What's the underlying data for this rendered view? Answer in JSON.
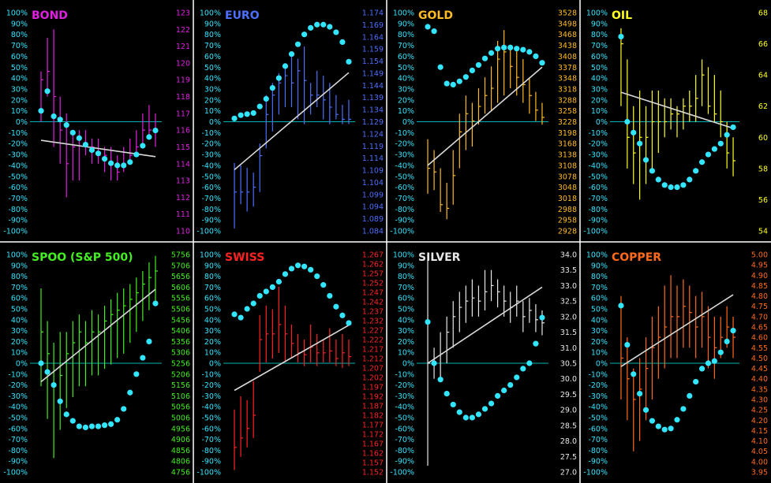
{
  "pct_ticks": [
    "100%",
    "90%",
    "80%",
    "70%",
    "60%",
    "50%",
    "40%",
    "30%",
    "20%",
    "10%",
    "0%",
    "-10%",
    "-20%",
    "-30%",
    "-40%",
    "-50%",
    "-60%",
    "-70%",
    "-80%",
    "-90%",
    "-100%"
  ],
  "colors": {
    "dots": "#33e6ff",
    "zero_line": "#00b3b3",
    "trend": "#d9d9d9",
    "divider": "#ffffff",
    "pct_label": "#33e6ff"
  },
  "chart_data": [
    {
      "type": "line",
      "title": "BOND",
      "color": "#e020e0",
      "price_ticks": [
        "123",
        "122",
        "121",
        "120",
        "119",
        "118",
        "117",
        "116",
        "115",
        "114",
        "113",
        "112",
        "111",
        "110"
      ],
      "price_range": [
        110,
        123
      ],
      "trend_pct": [
        -17,
        -32
      ],
      "oscillator_pct": [
        10,
        28,
        5,
        2,
        -3,
        -10,
        -15,
        -21,
        -26,
        -29,
        -34,
        -38,
        -40,
        -40,
        -37,
        -30,
        -22,
        -14,
        -8
      ],
      "price_bars": [
        [
          116.5,
          119.5,
          119
        ],
        [
          118,
          121.5,
          119.5
        ],
        [
          115,
          122,
          118
        ],
        [
          114,
          118,
          116
        ],
        [
          112,
          117,
          114
        ],
        [
          113,
          116,
          115
        ],
        [
          113,
          116,
          115.5
        ],
        [
          114.5,
          116,
          115
        ],
        [
          114,
          115.5,
          115
        ],
        [
          114,
          115.5,
          114.5
        ],
        [
          113.5,
          115,
          114.5
        ],
        [
          113,
          115,
          114
        ],
        [
          113,
          114.5,
          113.5
        ],
        [
          113.5,
          115,
          114
        ],
        [
          114,
          115.5,
          114.5
        ],
        [
          114.5,
          116,
          115
        ],
        [
          115,
          117,
          116
        ],
        [
          115.5,
          117.5,
          116
        ],
        [
          115,
          117,
          116
        ]
      ]
    },
    {
      "type": "line",
      "title": "EURO",
      "color": "#4d6fff",
      "price_ticks": [
        "1.174",
        "1.169",
        "1.164",
        "1.159",
        "1.154",
        "1.149",
        "1.144",
        "1.139",
        "1.134",
        "1.129",
        "1.124",
        "1.119",
        "1.114",
        "1.109",
        "1.104",
        "1.099",
        "1.094",
        "1.089",
        "1.084"
      ],
      "price_range": [
        1.084,
        1.174
      ],
      "trend_pct": [
        -44,
        45
      ],
      "oscillator_pct": [
        3,
        6,
        7,
        8,
        14,
        21,
        31,
        40,
        51,
        62,
        71,
        80,
        86,
        89,
        89,
        87,
        82,
        73,
        55
      ],
      "price_bars": [
        [
          1.085,
          1.112,
          1.1
        ],
        [
          1.095,
          1.111,
          1.1
        ],
        [
          1.092,
          1.11,
          1.1
        ],
        [
          1.094,
          1.108,
          1.102
        ],
        [
          1.1,
          1.12,
          1.115
        ],
        [
          1.118,
          1.14,
          1.132
        ],
        [
          1.125,
          1.145,
          1.14
        ],
        [
          1.132,
          1.149,
          1.145
        ],
        [
          1.135,
          1.152,
          1.148
        ],
        [
          1.135,
          1.158,
          1.145
        ],
        [
          1.13,
          1.155,
          1.15
        ],
        [
          1.128,
          1.16,
          1.146
        ],
        [
          1.132,
          1.145,
          1.14
        ],
        [
          1.135,
          1.15,
          1.14
        ],
        [
          1.13,
          1.148,
          1.138
        ],
        [
          1.128,
          1.145,
          1.135
        ],
        [
          1.13,
          1.14,
          1.132
        ],
        [
          1.128,
          1.136,
          1.13
        ],
        [
          1.128,
          1.138,
          1.13
        ]
      ]
    },
    {
      "type": "line",
      "title": "GOLD",
      "color": "#ffbb22",
      "price_ticks": [
        "3528",
        "3498",
        "3468",
        "3438",
        "3408",
        "3378",
        "3348",
        "3318",
        "3288",
        "3258",
        "3228",
        "3198",
        "3168",
        "3138",
        "3108",
        "3078",
        "3048",
        "3018",
        "2988",
        "2958",
        "2928"
      ],
      "price_range": [
        2928,
        3528
      ],
      "trend_pct": [
        -40,
        50
      ],
      "oscillator_pct": [
        87,
        83,
        50,
        35,
        34,
        37,
        41,
        47,
        52,
        58,
        63,
        67,
        68,
        68,
        67,
        66,
        64,
        60,
        54
      ],
      "price_bars": [
        [
          3030,
          3180,
          3100
        ],
        [
          3040,
          3150,
          3090
        ],
        [
          2980,
          3100,
          3000
        ],
        [
          2960,
          3060,
          2990
        ],
        [
          3000,
          3150,
          3080
        ],
        [
          3100,
          3250,
          3200
        ],
        [
          3150,
          3300,
          3250
        ],
        [
          3160,
          3280,
          3230
        ],
        [
          3220,
          3320,
          3270
        ],
        [
          3250,
          3350,
          3300
        ],
        [
          3260,
          3380,
          3320
        ],
        [
          3280,
          3450,
          3400
        ],
        [
          3300,
          3480,
          3420
        ],
        [
          3320,
          3440,
          3380
        ],
        [
          3300,
          3430,
          3350
        ],
        [
          3280,
          3400,
          3330
        ],
        [
          3250,
          3350,
          3300
        ],
        [
          3230,
          3310,
          3260
        ],
        [
          3220,
          3280,
          3240
        ]
      ]
    },
    {
      "type": "line",
      "title": "OIL",
      "color": "#ffff22",
      "price_ticks": [
        "68",
        "66",
        "64",
        "62",
        "60",
        "58",
        "56",
        "54"
      ],
      "price_range": [
        54,
        68
      ],
      "trend_pct": [
        27,
        -6
      ],
      "oscillator_pct": [
        78,
        0,
        -10,
        -20,
        -35,
        -45,
        -53,
        -58,
        -60,
        -60,
        -58,
        -53,
        -45,
        -37,
        -30,
        -25,
        -20,
        -12,
        -5
      ],
      "price_bars": [
        [
          62,
          67,
          66
        ],
        [
          58,
          65,
          60
        ],
        [
          57,
          62,
          59
        ],
        [
          56,
          63,
          60
        ],
        [
          57,
          62,
          60
        ],
        [
          58,
          63,
          61
        ],
        [
          59,
          63,
          61
        ],
        [
          60,
          62.5,
          61
        ],
        [
          60.5,
          62.5,
          61.5
        ],
        [
          60,
          62,
          61.5
        ],
        [
          60.5,
          62.5,
          62
        ],
        [
          61,
          63,
          62
        ],
        [
          61,
          64,
          62.5
        ],
        [
          62,
          65,
          64
        ],
        [
          61.5,
          64.5,
          62
        ],
        [
          61,
          64,
          61.5
        ],
        [
          60,
          63,
          61
        ],
        [
          58,
          61,
          59
        ],
        [
          57.5,
          60,
          58.5
        ]
      ]
    },
    {
      "type": "line",
      "title": "SPOO (S&P 500)",
      "color": "#44ee22",
      "price_ticks": [
        "5756",
        "5706",
        "5656",
        "5606",
        "5556",
        "5506",
        "5456",
        "5406",
        "5356",
        "5306",
        "5256",
        "5206",
        "5156",
        "5106",
        "5056",
        "5006",
        "4956",
        "4906",
        "4856",
        "4806",
        "4756"
      ],
      "price_range": [
        4756,
        5756
      ],
      "trend_pct": [
        -17,
        68
      ],
      "oscillator_pct": [
        0,
        -8,
        -20,
        -35,
        -47,
        -53,
        -58,
        -59,
        -58,
        -58,
        -57,
        -56,
        -52,
        -42,
        -27,
        -10,
        5,
        20,
        55
      ],
      "price_bars": [
        [
          5150,
          5600,
          5400
        ],
        [
          5000,
          5450,
          5300
        ],
        [
          4820,
          5350,
          5150
        ],
        [
          4950,
          5400,
          5200
        ],
        [
          5050,
          5400,
          5300
        ],
        [
          5100,
          5450,
          5350
        ],
        [
          5150,
          5480,
          5400
        ],
        [
          5150,
          5450,
          5350
        ],
        [
          5200,
          5500,
          5400
        ],
        [
          5200,
          5480,
          5400
        ],
        [
          5230,
          5520,
          5450
        ],
        [
          5250,
          5550,
          5480
        ],
        [
          5280,
          5580,
          5500
        ],
        [
          5300,
          5600,
          5520
        ],
        [
          5350,
          5620,
          5550
        ],
        [
          5400,
          5650,
          5580
        ],
        [
          5450,
          5680,
          5620
        ],
        [
          5500,
          5720,
          5650
        ],
        [
          5520,
          5750,
          5680
        ]
      ]
    },
    {
      "type": "line",
      "title": "SWISS",
      "color": "#ff2222",
      "price_ticks": [
        "1.267",
        "1.262",
        "1.257",
        "1.252",
        "1.247",
        "1.242",
        "1.237",
        "1.232",
        "1.227",
        "1.222",
        "1.217",
        "1.212",
        "1.207",
        "1.202",
        "1.197",
        "1.192",
        "1.187",
        "1.182",
        "1.177",
        "1.172",
        "1.167",
        "1.162",
        "1.157",
        "1.152"
      ],
      "price_range": [
        1.152,
        1.267
      ],
      "trend_pct": [
        -25,
        35
      ],
      "oscillator_pct": [
        45,
        42,
        50,
        55,
        62,
        66,
        70,
        75,
        82,
        87,
        90,
        89,
        86,
        80,
        72,
        62,
        52,
        44,
        37
      ],
      "price_bars": [
        [
          1.153,
          1.185,
          1.165
        ],
        [
          1.16,
          1.192,
          1.17
        ],
        [
          1.165,
          1.19,
          1.175
        ],
        [
          1.17,
          1.2,
          1.182
        ],
        [
          1.205,
          1.235,
          1.222
        ],
        [
          1.21,
          1.24,
          1.225
        ],
        [
          1.212,
          1.238,
          1.225
        ],
        [
          1.215,
          1.25,
          1.23
        ],
        [
          1.21,
          1.24,
          1.225
        ],
        [
          1.212,
          1.23,
          1.22
        ],
        [
          1.21,
          1.225,
          1.215
        ],
        [
          1.208,
          1.222,
          1.214
        ],
        [
          1.21,
          1.23,
          1.218
        ],
        [
          1.208,
          1.225,
          1.215
        ],
        [
          1.21,
          1.222,
          1.215
        ],
        [
          1.21,
          1.228,
          1.216
        ],
        [
          1.208,
          1.222,
          1.212
        ],
        [
          1.207,
          1.225,
          1.215
        ],
        [
          1.208,
          1.222,
          1.213
        ]
      ]
    },
    {
      "type": "line",
      "title": "SILVER",
      "color": "#e8e8e8",
      "price_ticks": [
        "34.0",
        "33.5",
        "33.0",
        "32.5",
        "32.0",
        "31.5",
        "31.0",
        "30.5",
        "30.0",
        "29.5",
        "29.0",
        "28.5",
        "28.0",
        "27.5",
        "27.0"
      ],
      "price_range": [
        27.0,
        34.0
      ],
      "trend_pct": [
        0,
        70
      ],
      "oscillator_pct": [
        38,
        0,
        -15,
        -28,
        -38,
        -45,
        -50,
        -50,
        -47,
        -42,
        -37,
        -30,
        -25,
        -20,
        -13,
        -5,
        0,
        18,
        42
      ],
      "price_bars": [
        [
          27.2,
          34.0,
          30.5
        ],
        [
          30.0,
          31.0,
          30.5
        ],
        [
          30.0,
          31.5,
          30.8
        ],
        [
          30.5,
          32.0,
          31.5
        ],
        [
          31.0,
          32.5,
          32.0
        ],
        [
          31.5,
          32.8,
          32.3
        ],
        [
          31.8,
          33.0,
          32.5
        ],
        [
          32.0,
          33.2,
          32.6
        ],
        [
          32.0,
          33.0,
          32.5
        ],
        [
          32.2,
          33.5,
          32.8
        ],
        [
          32.5,
          33.5,
          33.0
        ],
        [
          32.3,
          33.2,
          32.8
        ],
        [
          32.0,
          33.0,
          32.5
        ],
        [
          31.8,
          32.8,
          32.3
        ],
        [
          32.0,
          33.0,
          32.5
        ],
        [
          31.5,
          32.5,
          32.0
        ],
        [
          31.8,
          32.6,
          32.2
        ],
        [
          31.5,
          32.4,
          31.9
        ],
        [
          31.4,
          32.2,
          31.8
        ]
      ]
    },
    {
      "type": "line",
      "title": "COPPER",
      "color": "#ff6a1a",
      "price_ticks": [
        "5.00",
        "4.95",
        "4.90",
        "4.85",
        "4.80",
        "4.75",
        "4.70",
        "4.65",
        "4.60",
        "4.55",
        "4.50",
        "4.45",
        "4.40",
        "4.35",
        "4.30",
        "4.25",
        "4.20",
        "4.15",
        "4.10",
        "4.05",
        "4.00",
        "3.95"
      ],
      "price_range": [
        3.95,
        5.0
      ],
      "trend_pct": [
        -3,
        63
      ],
      "oscillator_pct": [
        53,
        17,
        -10,
        -28,
        -43,
        -53,
        -58,
        -61,
        -60,
        -52,
        -42,
        -30,
        -17,
        -5,
        0,
        2,
        10,
        20,
        30
      ],
      "price_bars": [
        [
          4.3,
          4.8,
          4.5
        ],
        [
          4.2,
          4.6,
          4.4
        ],
        [
          4.05,
          4.45,
          4.3
        ],
        [
          4.1,
          4.5,
          4.35
        ],
        [
          4.2,
          4.6,
          4.45
        ],
        [
          4.3,
          4.7,
          4.55
        ],
        [
          4.4,
          4.75,
          4.6
        ],
        [
          4.45,
          4.85,
          4.65
        ],
        [
          4.5,
          4.9,
          4.7
        ],
        [
          4.5,
          4.85,
          4.7
        ],
        [
          4.55,
          4.88,
          4.75
        ],
        [
          4.55,
          4.85,
          4.72
        ],
        [
          4.5,
          4.8,
          4.65
        ],
        [
          4.55,
          4.82,
          4.7
        ],
        [
          4.45,
          4.75,
          4.6
        ],
        [
          4.4,
          4.7,
          4.55
        ],
        [
          4.5,
          4.7,
          4.6
        ],
        [
          4.55,
          4.75,
          4.65
        ],
        [
          4.5,
          4.7,
          4.6
        ]
      ]
    }
  ]
}
